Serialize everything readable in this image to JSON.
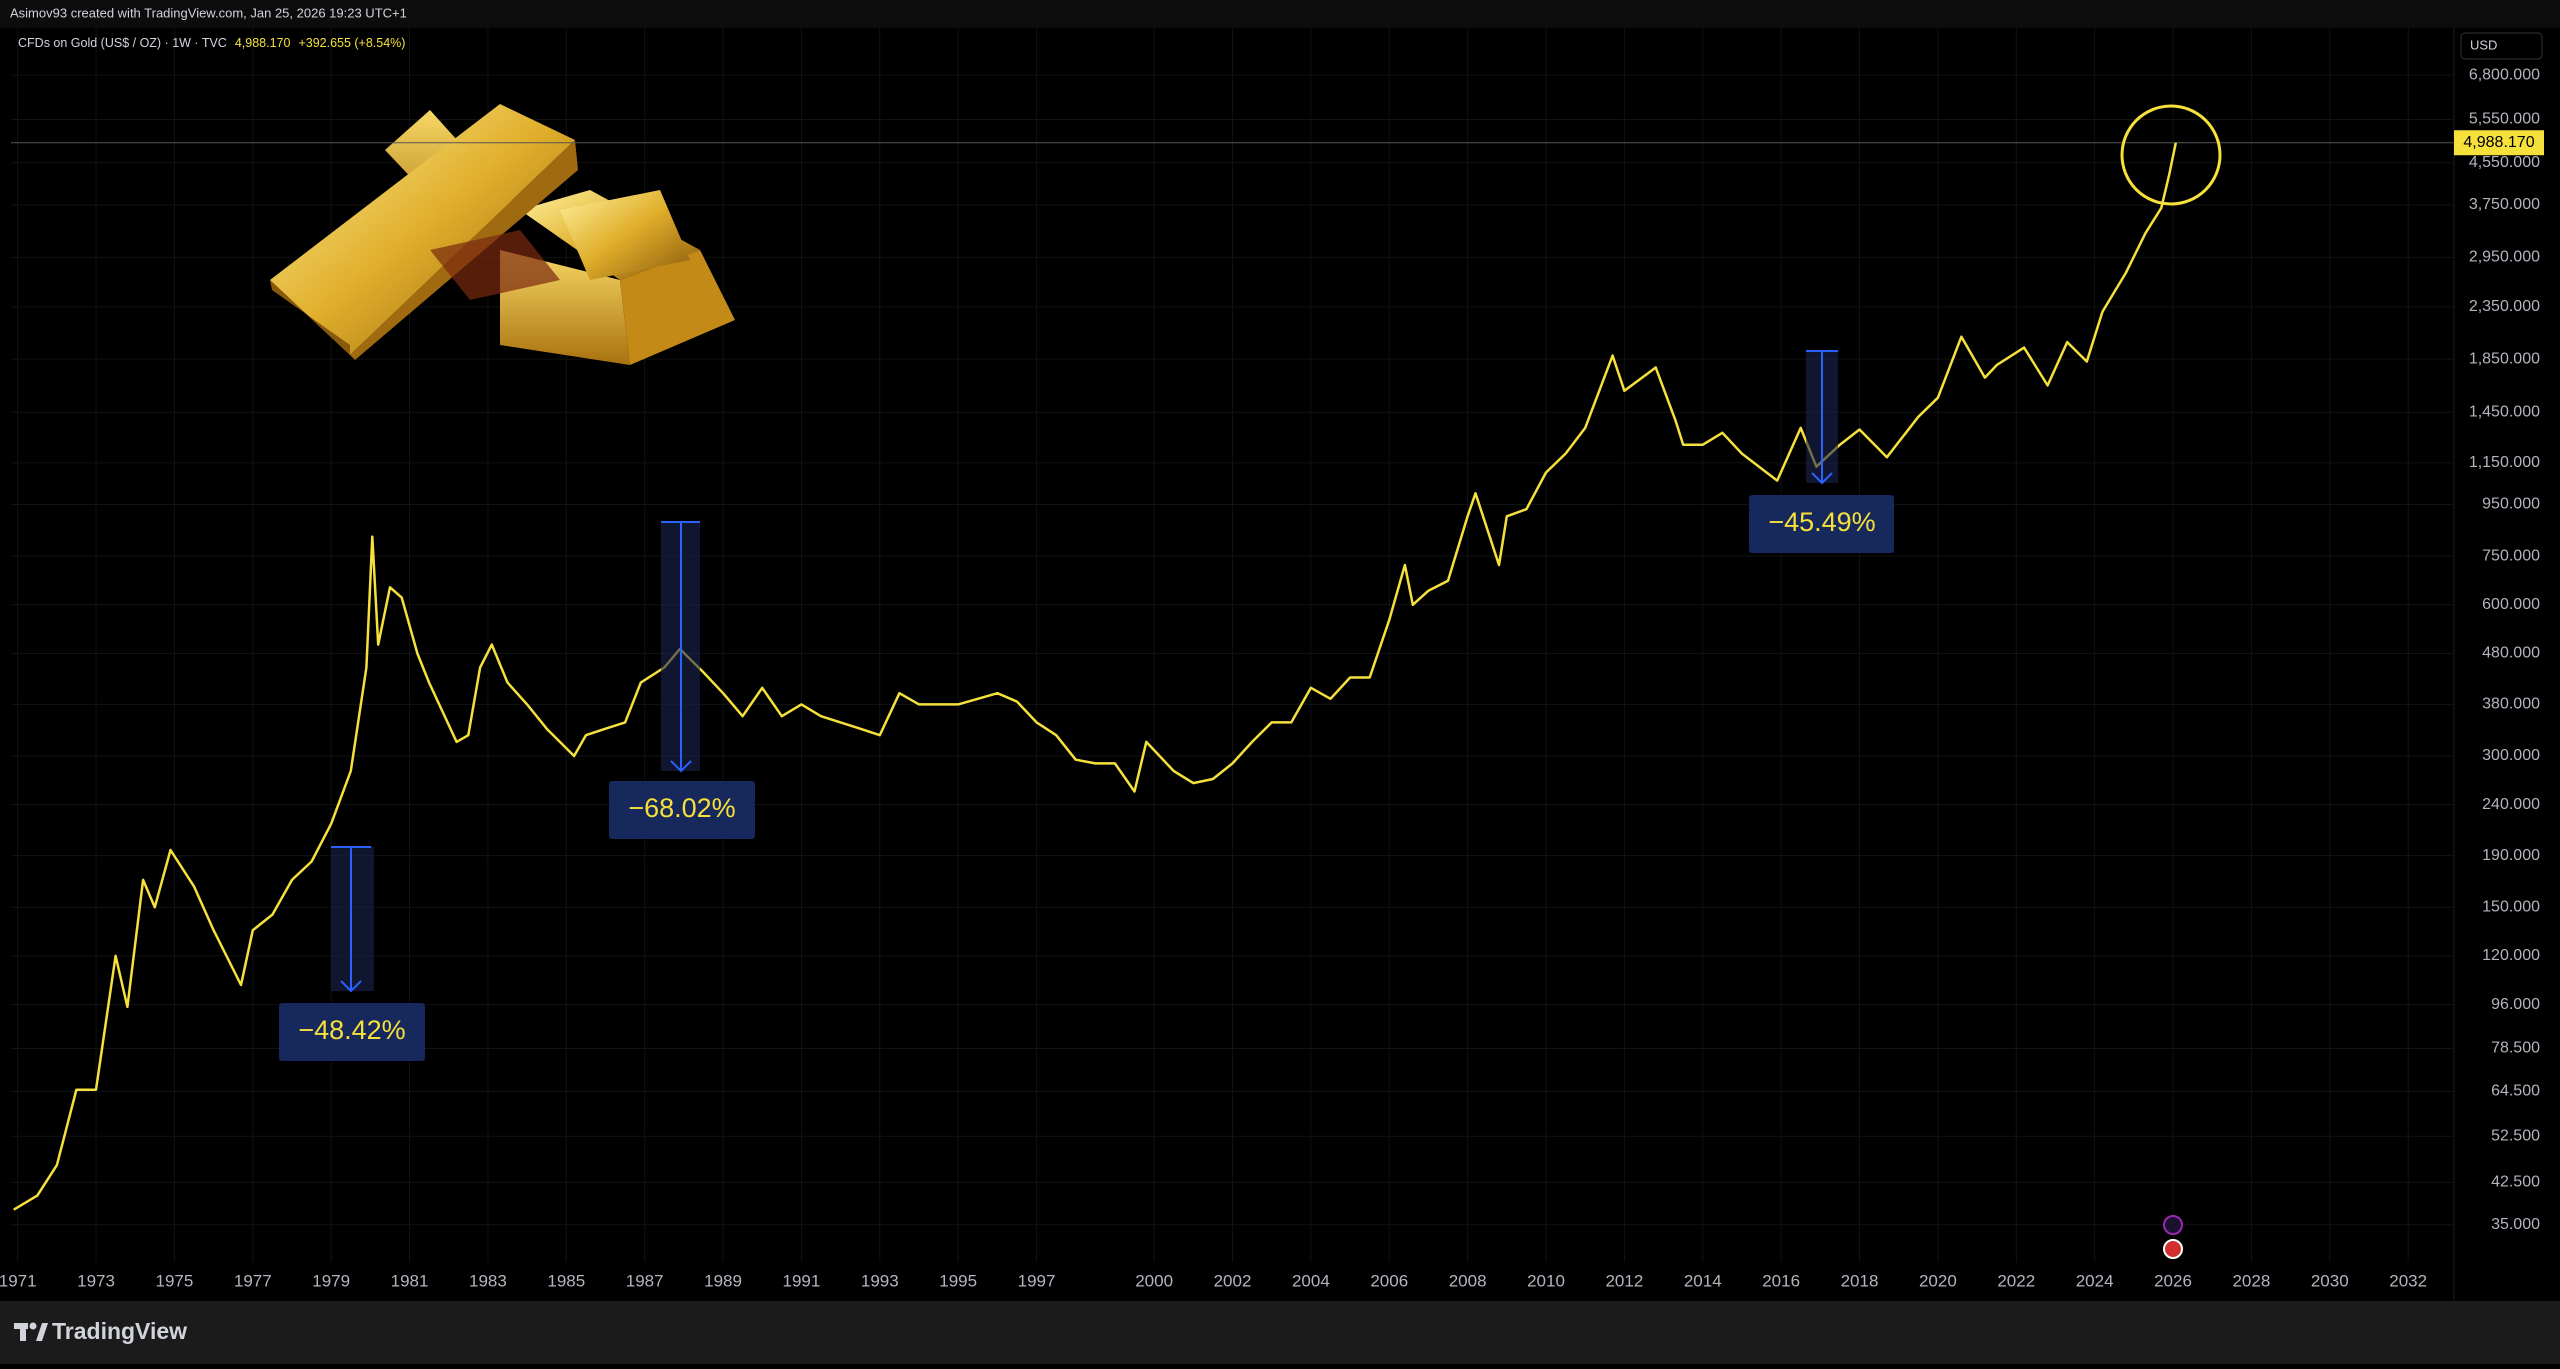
{
  "header": {
    "credit": "Asimov93 created with TradingView.com, Jan 25, 2026 19:23 UTC+1",
    "currency": "USD",
    "brand": "TradingView"
  },
  "chart_data": {
    "type": "line",
    "title": "CFDs on Gold (US$ / OZ) · 1W · TVC",
    "last_price": "4,988.170",
    "change": "+392.655 (+8.54%)",
    "log_scale": true,
    "grid": true,
    "xlim": [
      1970.83,
      2033.17
    ],
    "xticks": [
      1971,
      1973,
      1975,
      1977,
      1979,
      1981,
      1983,
      1985,
      1987,
      1989,
      1991,
      1993,
      1995,
      1997,
      2000,
      2002,
      2004,
      2006,
      2008,
      2010,
      2012,
      2014,
      2016,
      2018,
      2020,
      2022,
      2024,
      2026,
      2028,
      2030,
      2032
    ],
    "ylim": [
      29.5,
      8440
    ],
    "yticks": [
      {
        "value": 35,
        "label": "35.000"
      },
      {
        "value": 42.5,
        "label": "42.500"
      },
      {
        "value": 52.5,
        "label": "52.500"
      },
      {
        "value": 64.5,
        "label": "64.500"
      },
      {
        "value": 78.5,
        "label": "78.500"
      },
      {
        "value": 96,
        "label": "96.000"
      },
      {
        "value": 120,
        "label": "120.000"
      },
      {
        "value": 150,
        "label": "150.000"
      },
      {
        "value": 190,
        "label": "190.000"
      },
      {
        "value": 240,
        "label": "240.000"
      },
      {
        "value": 300,
        "label": "300.000"
      },
      {
        "value": 380,
        "label": "380.000"
      },
      {
        "value": 480,
        "label": "480.000"
      },
      {
        "value": 600,
        "label": "600.000"
      },
      {
        "value": 750,
        "label": "750.000"
      },
      {
        "value": 950,
        "label": "950.000"
      },
      {
        "value": 1150,
        "label": "1,150.000"
      },
      {
        "value": 1450,
        "label": "1,450.000"
      },
      {
        "value": 1850,
        "label": "1,850.000"
      },
      {
        "value": 2350,
        "label": "2,350.000"
      },
      {
        "value": 2950,
        "label": "2,950.000"
      },
      {
        "value": 3750,
        "label": "3,750.000"
      },
      {
        "value": 4550,
        "label": "4,550.000"
      },
      {
        "value": 5550,
        "label": "5,550.000"
      },
      {
        "value": 6800,
        "label": "6,800.000"
      }
    ],
    "series": [
      {
        "color": "#f5e03c",
        "x": [
          1970.9,
          1971.5,
          1972.0,
          1972.5,
          1973.0,
          1973.5,
          1973.8,
          1974.2,
          1974.5,
          1974.9,
          1975.5,
          1976.0,
          1976.7,
          1977.0,
          1977.5,
          1978.0,
          1978.5,
          1979.0,
          1979.5,
          1979.9,
          1980.05,
          1980.2,
          1980.5,
          1980.8,
          1981.2,
          1981.5,
          1982.2,
          1982.5,
          1982.8,
          1983.1,
          1983.5,
          1984.0,
          1984.5,
          1985.2,
          1985.5,
          1986.0,
          1986.5,
          1986.9,
          1987.5,
          1987.9,
          1988.5,
          1989.0,
          1989.5,
          1990.0,
          1990.5,
          1991.0,
          1991.5,
          1992.0,
          1992.5,
          1993.0,
          1993.5,
          1994.0,
          1995.0,
          1996.0,
          1996.5,
          1997.0,
          1997.5,
          1998.0,
          1998.5,
          1999.0,
          1999.5,
          1999.8,
          2000.5,
          2001.0,
          2001.5,
          2002.0,
          2002.5,
          2003.0,
          2003.5,
          2004.0,
          2004.5,
          2005.0,
          2005.5,
          2006.0,
          2006.4,
          2006.6,
          2007.0,
          2007.5,
          2008.0,
          2008.2,
          2008.8,
          2009.0,
          2009.5,
          2010.0,
          2010.5,
          2011.0,
          2011.7,
          2012.0,
          2012.8,
          2013.3,
          2013.5,
          2014.0,
          2014.5,
          2015.0,
          2015.9,
          2016.5,
          2016.9,
          2017.5,
          2018.0,
          2018.7,
          2019.5,
          2020.0,
          2020.6,
          2021.2,
          2021.5,
          2022.2,
          2022.8,
          2023.3,
          2023.8,
          2024.2,
          2024.8,
          2025.3,
          2025.7,
          2025.9,
          2026.07
        ],
        "values": [
          37.5,
          40,
          46,
          65,
          65,
          120,
          95,
          170,
          150,
          195,
          165,
          135,
          105,
          135,
          145,
          170,
          185,
          220,
          280,
          450,
          820,
          500,
          650,
          620,
          480,
          420,
          320,
          330,
          450,
          500,
          420,
          380,
          340,
          300,
          330,
          340,
          350,
          420,
          450,
          490,
          440,
          400,
          360,
          410,
          360,
          380,
          360,
          350,
          340,
          330,
          400,
          380,
          380,
          400,
          385,
          350,
          330,
          295,
          290,
          290,
          255,
          320,
          280,
          265,
          270,
          290,
          320,
          350,
          350,
          410,
          390,
          430,
          430,
          560,
          720,
          600,
          640,
          670,
          900,
          1000,
          720,
          900,
          930,
          1100,
          1200,
          1350,
          1880,
          1600,
          1780,
          1400,
          1250,
          1250,
          1320,
          1200,
          1060,
          1350,
          1130,
          1250,
          1340,
          1180,
          1420,
          1550,
          2050,
          1700,
          1800,
          1950,
          1640,
          2000,
          1830,
          2300,
          2750,
          3300,
          3700,
          4300,
          4988.17
        ]
      }
    ],
    "annotations": [
      "−48.42%",
      "−68.02%",
      "−45.49%"
    ]
  }
}
